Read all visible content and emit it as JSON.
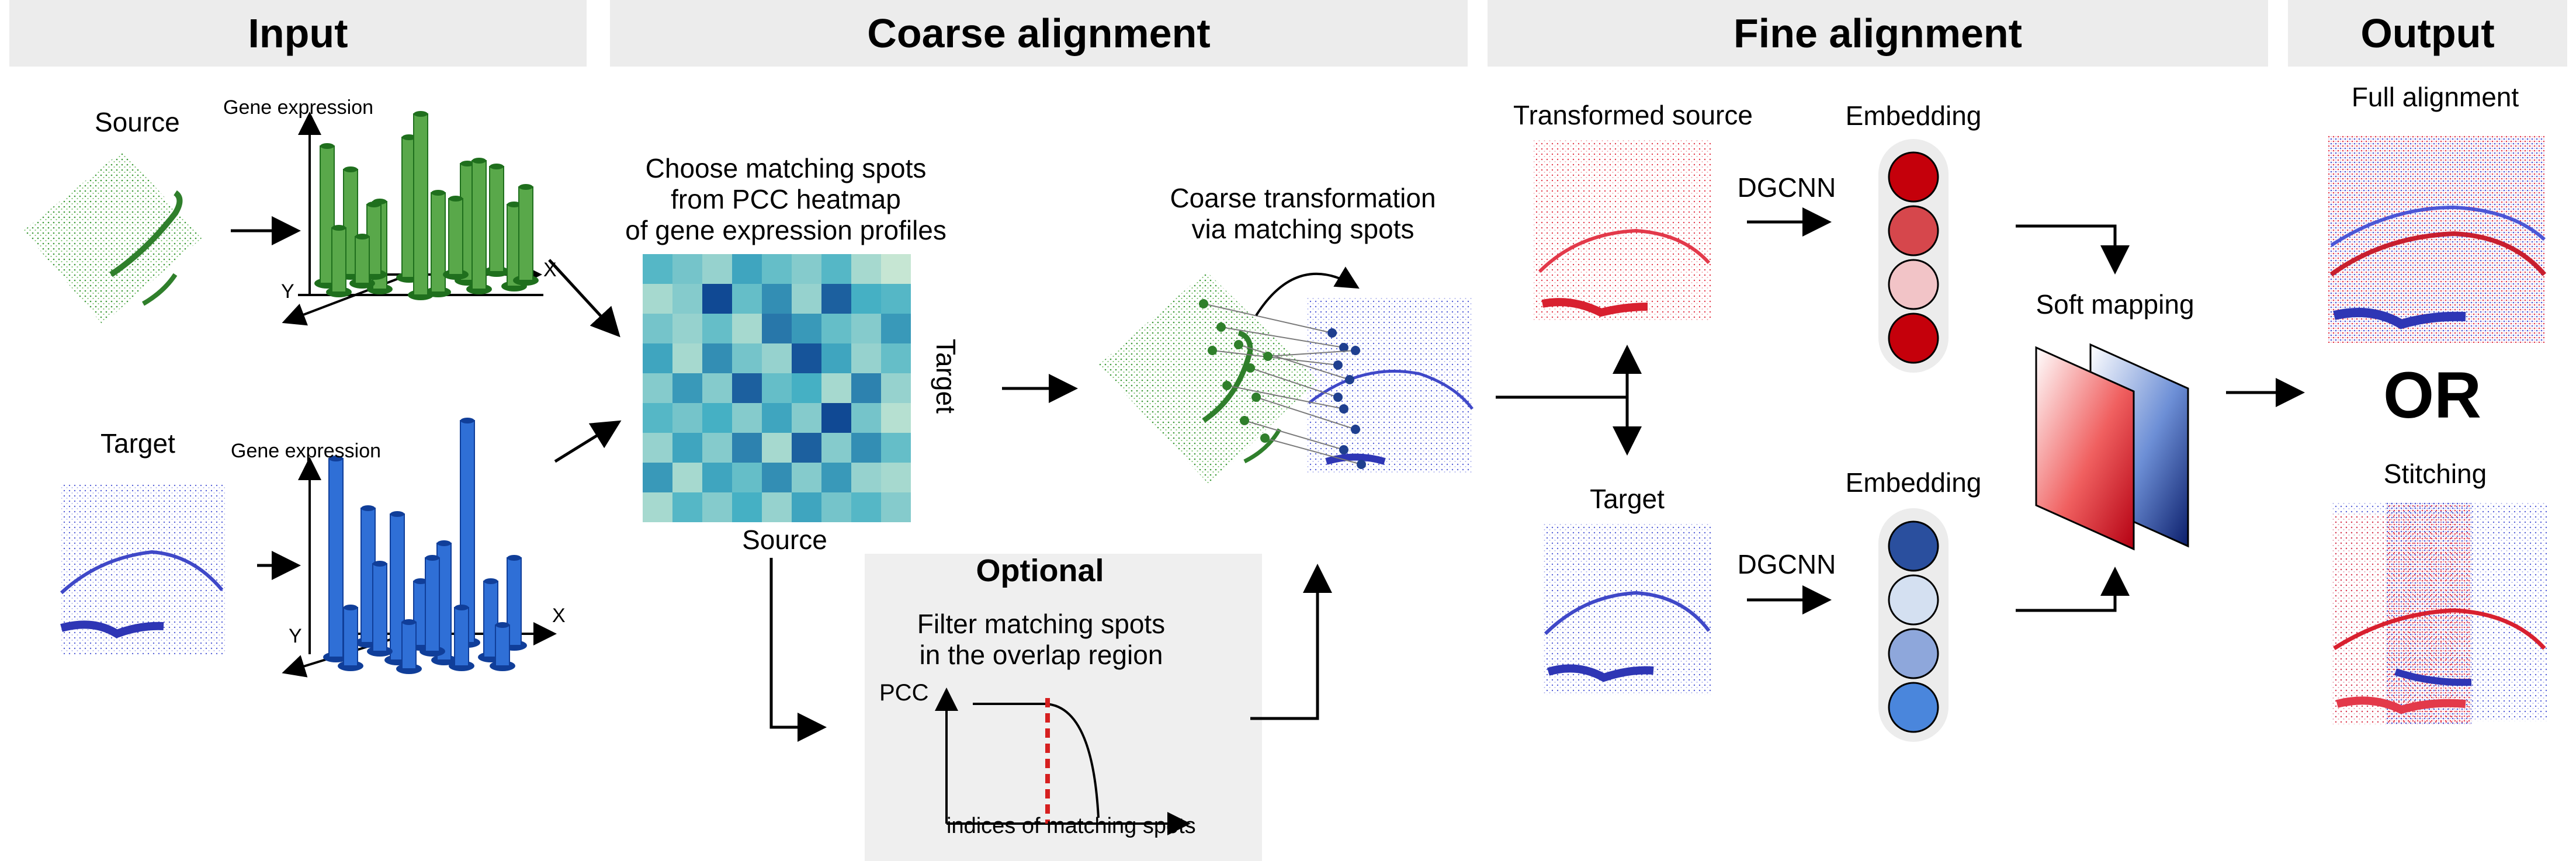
{
  "headers": {
    "input": "Input",
    "coarse": "Coarse alignment",
    "fine": "Fine alignment",
    "output": "Output"
  },
  "input": {
    "source_label": "Source",
    "target_label": "Target",
    "gene_expression_top": "Gene expression",
    "gene_expression_bottom": "Gene expression",
    "axis_x_top": "X",
    "axis_y_top": "Y",
    "axis_x_bottom": "X",
    "axis_y_bottom": "Y"
  },
  "coarse": {
    "heatmap_caption": [
      "Choose matching spots",
      "from PCC heatmap",
      "of gene expression profiles"
    ],
    "heatmap_target_label": "Target",
    "heatmap_source_label": "Source",
    "transform_caption": [
      "Coarse transformation",
      "via matching spots"
    ],
    "heatmap_cells": [
      [
        0.45,
        0.35,
        0.25,
        0.55,
        0.4,
        0.3,
        0.45,
        0.2,
        0.1
      ],
      [
        0.2,
        0.3,
        0.95,
        0.4,
        0.65,
        0.25,
        0.85,
        0.5,
        0.45
      ],
      [
        0.35,
        0.25,
        0.4,
        0.2,
        0.75,
        0.6,
        0.4,
        0.3,
        0.6
      ],
      [
        0.55,
        0.2,
        0.65,
        0.35,
        0.25,
        0.9,
        0.55,
        0.25,
        0.4
      ],
      [
        0.3,
        0.6,
        0.3,
        0.85,
        0.4,
        0.5,
        0.2,
        0.7,
        0.25
      ],
      [
        0.45,
        0.35,
        0.5,
        0.3,
        0.55,
        0.3,
        0.95,
        0.35,
        0.15
      ],
      [
        0.25,
        0.55,
        0.3,
        0.7,
        0.2,
        0.85,
        0.3,
        0.65,
        0.4
      ],
      [
        0.6,
        0.2,
        0.55,
        0.4,
        0.65,
        0.3,
        0.6,
        0.25,
        0.2
      ],
      [
        0.2,
        0.45,
        0.3,
        0.5,
        0.25,
        0.55,
        0.35,
        0.45,
        0.3
      ]
    ],
    "colors": {
      "heat_low": "#e6f4d7",
      "heat_high": "#0a3d8f"
    }
  },
  "optional": {
    "title": "Optional",
    "caption": [
      "Filter matching spots",
      "in the overlap region"
    ],
    "y_label": "PCC",
    "x_label": "indices of matching spots"
  },
  "fine": {
    "transformed_source_label": "Transformed source",
    "target_label": "Target",
    "embedding_top": "Embedding",
    "embedding_bottom": "Embedding",
    "dgcnn_top": "DGCNN",
    "dgcnn_bottom": "DGCNN",
    "soft_mapping": "Soft mapping",
    "embedding_top_colors": [
      "#c5000b",
      "#d6474c",
      "#f2c4c7",
      "#c5000b"
    ],
    "embedding_bottom_colors": [
      "#2a4f9e",
      "#d4e0f1",
      "#8ea7db",
      "#4a86dc"
    ]
  },
  "output": {
    "full_alignment": "Full alignment",
    "or": "OR",
    "stitching": "Stitching"
  },
  "colors": {
    "source_green": "#3f9a3a",
    "target_blue": "#4b56d6",
    "red": "#e3394a",
    "header_bg": "#ececec",
    "optional_bg": "#efefef"
  }
}
